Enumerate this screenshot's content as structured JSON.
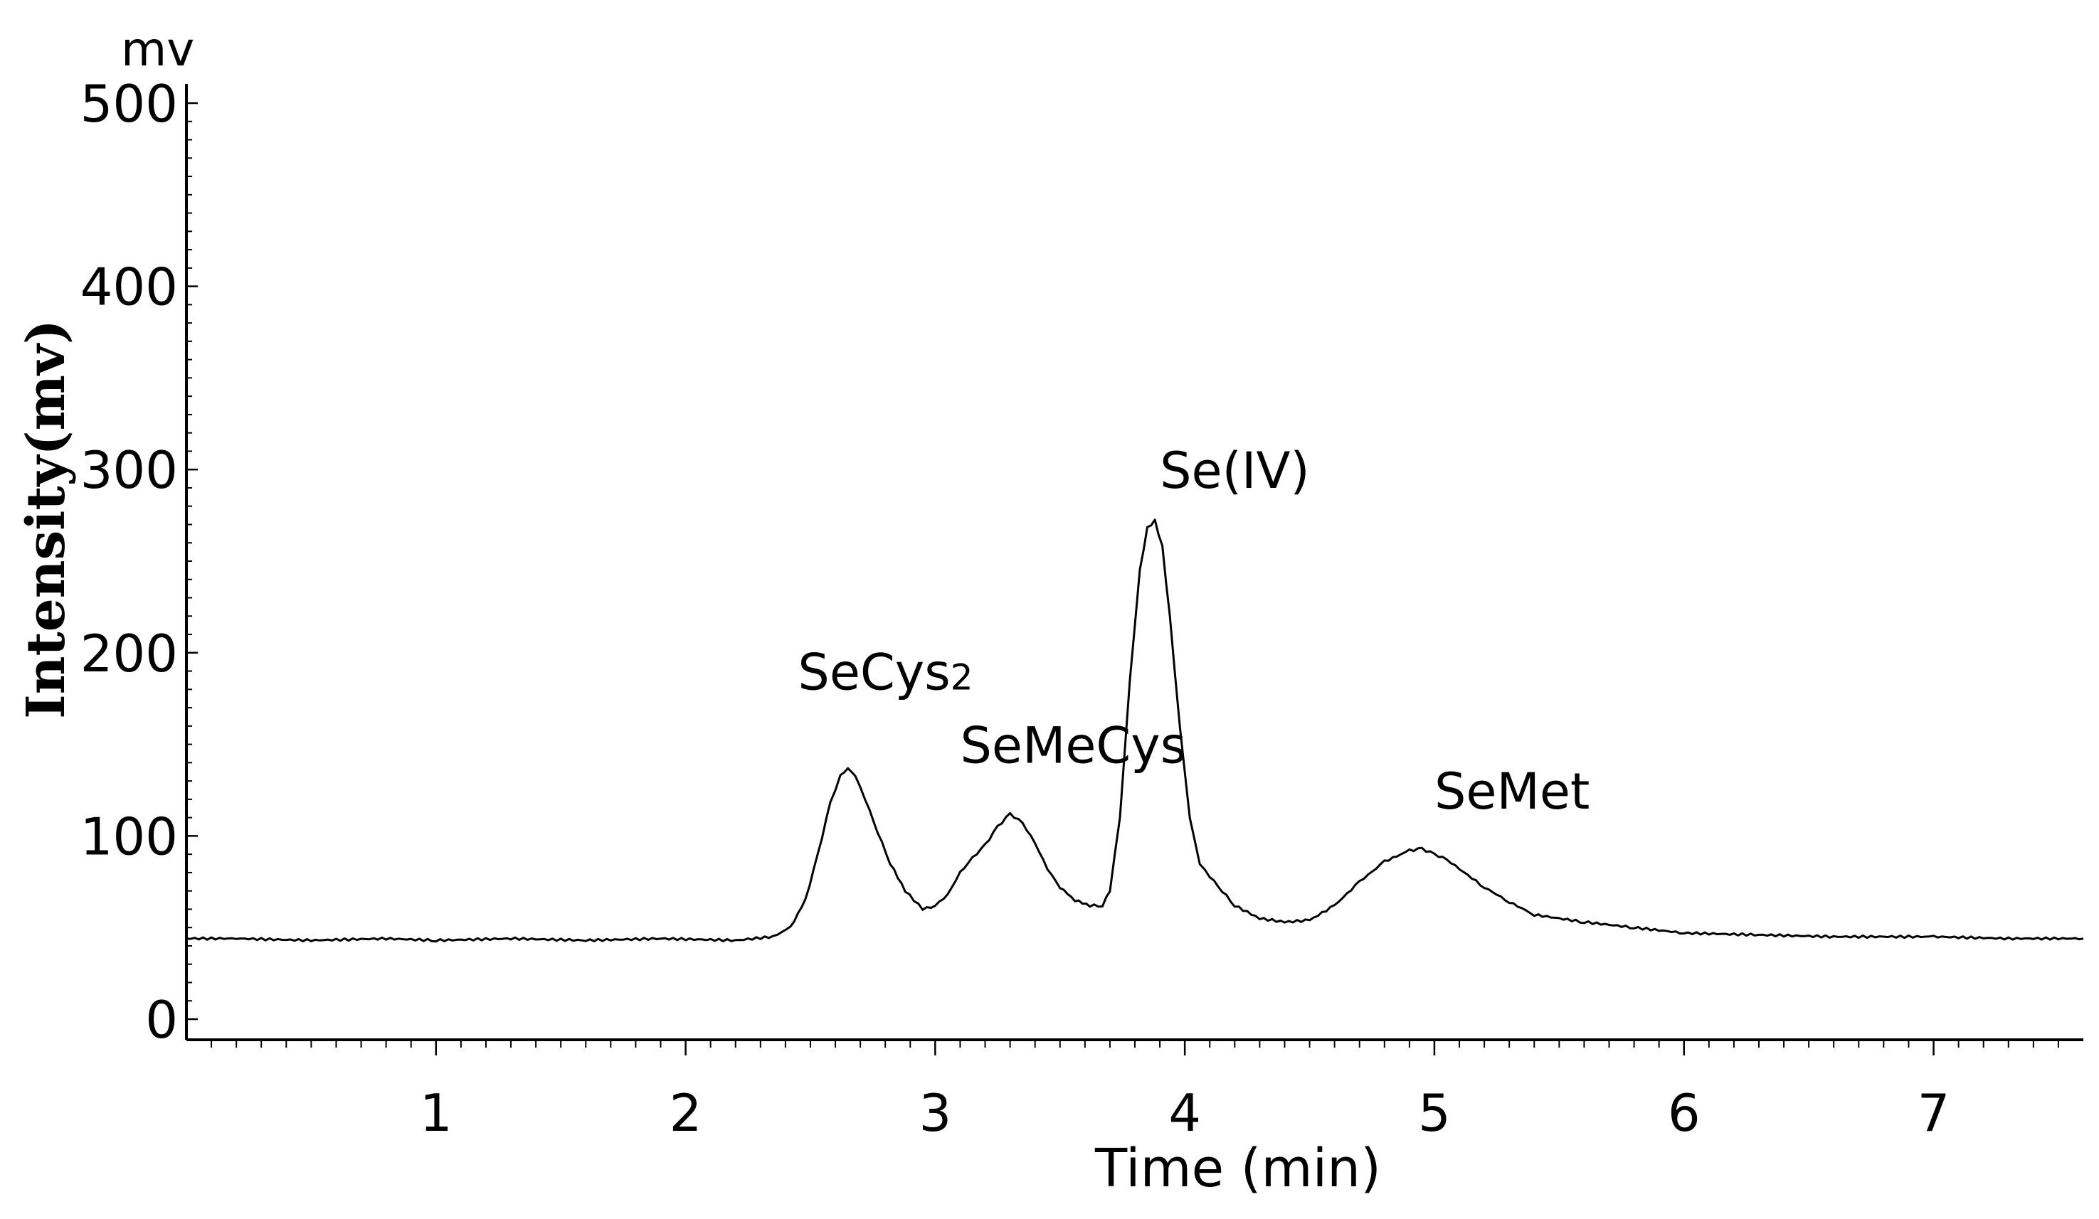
{
  "chart_data": {
    "type": "line",
    "title": "",
    "xlabel": "Time (min)",
    "ylabel": "Intensity(mv)",
    "y_unit_label": "mv",
    "xlim": [
      0,
      7.6
    ],
    "ylim": [
      0,
      500
    ],
    "x_ticks": [
      1,
      2,
      3,
      4,
      5,
      6,
      7
    ],
    "y_ticks": [
      0,
      100,
      200,
      300,
      400,
      500
    ],
    "grid": false,
    "series": [
      {
        "x": [
          0.0,
          0.2,
          0.5,
          0.8,
          1.0,
          1.3,
          1.6,
          1.9,
          2.2,
          2.35,
          2.42,
          2.48,
          2.53,
          2.58,
          2.62,
          2.65,
          2.68,
          2.72,
          2.77,
          2.82,
          2.88,
          2.95,
          3.0,
          3.05,
          3.1,
          3.15,
          3.2,
          3.25,
          3.3,
          3.35,
          3.4,
          3.45,
          3.5,
          3.56,
          3.62,
          3.67,
          3.7,
          3.74,
          3.78,
          3.82,
          3.85,
          3.88,
          3.91,
          3.94,
          3.98,
          4.02,
          4.06,
          4.1,
          4.15,
          4.2,
          4.3,
          4.4,
          4.5,
          4.6,
          4.7,
          4.8,
          4.9,
          4.95,
          5.0,
          5.05,
          5.1,
          5.2,
          5.3,
          5.4,
          5.6,
          5.8,
          6.0,
          6.3,
          6.6,
          7.0,
          7.3,
          7.6
        ],
        "y": [
          44,
          44,
          43,
          44,
          43,
          44,
          43,
          44,
          43,
          45,
          50,
          65,
          90,
          118,
          133,
          137,
          133,
          120,
          102,
          85,
          70,
          60,
          62,
          68,
          80,
          88,
          95,
          105,
          112,
          107,
          96,
          82,
          72,
          65,
          62,
          62,
          70,
          110,
          185,
          245,
          268,
          272,
          258,
          220,
          160,
          110,
          85,
          78,
          70,
          62,
          55,
          53,
          54,
          62,
          75,
          86,
          92,
          93,
          90,
          87,
          82,
          72,
          64,
          57,
          53,
          50,
          47,
          46,
          45,
          45,
          44,
          44
        ]
      }
    ],
    "annotations": [
      {
        "text": "SeCys",
        "subscript": "2",
        "x": 2.45,
        "y": 180
      },
      {
        "text": "SeMeCys",
        "x": 3.1,
        "y": 140
      },
      {
        "text": "Se(IV)",
        "x": 3.9,
        "y": 290
      },
      {
        "text": "SeMet",
        "x": 5.0,
        "y": 115
      }
    ]
  }
}
